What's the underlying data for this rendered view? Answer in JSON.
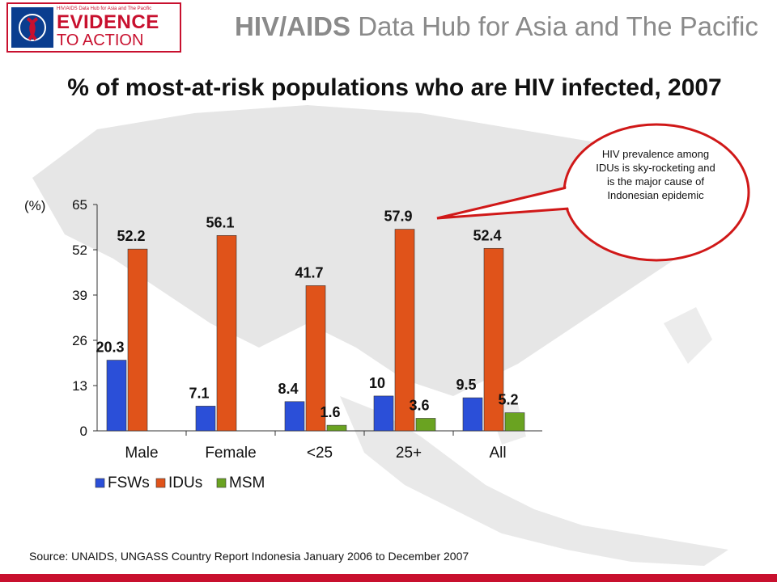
{
  "header": {
    "logo_small": "HIV/AIDS Data Hub for Asia and The Pacific",
    "logo_line1": "EVIDENCE",
    "logo_line2": "TO ACTION",
    "title_bold": "HIV/AIDS",
    "title_rest": " Data Hub for Asia and The Pacific"
  },
  "colors": {
    "accent": "#c8102e",
    "fsws": "#2b4fd8",
    "idus": "#e0531a",
    "msm": "#6aa321"
  },
  "callout": {
    "text": "HIV prevalence among IDUs is sky-rocketing and is the major cause of Indonesian epidemic"
  },
  "source": "Source: UNAIDS, UNGASS Country Report Indonesia January 2006 to December 2007",
  "chart_data": {
    "type": "bar",
    "title": "% of most-at-risk populations who are HIV infected, 2007",
    "ylabel": "(%)",
    "ylim": [
      0,
      65
    ],
    "yticks": [
      0,
      13,
      26,
      39,
      52,
      65
    ],
    "categories": [
      "Male",
      "Female",
      "<25",
      "25+",
      "All"
    ],
    "series": [
      {
        "name": "FSWs",
        "color": "#2b4fd8",
        "values": [
          20.3,
          7.1,
          8.4,
          10,
          9.5
        ]
      },
      {
        "name": "IDUs",
        "color": "#e0531a",
        "values": [
          52.2,
          56.1,
          41.7,
          57.9,
          52.4
        ]
      },
      {
        "name": "MSM",
        "color": "#6aa321",
        "values": [
          null,
          null,
          1.6,
          3.6,
          5.2
        ]
      }
    ],
    "legend": "bottom",
    "grid": false
  }
}
